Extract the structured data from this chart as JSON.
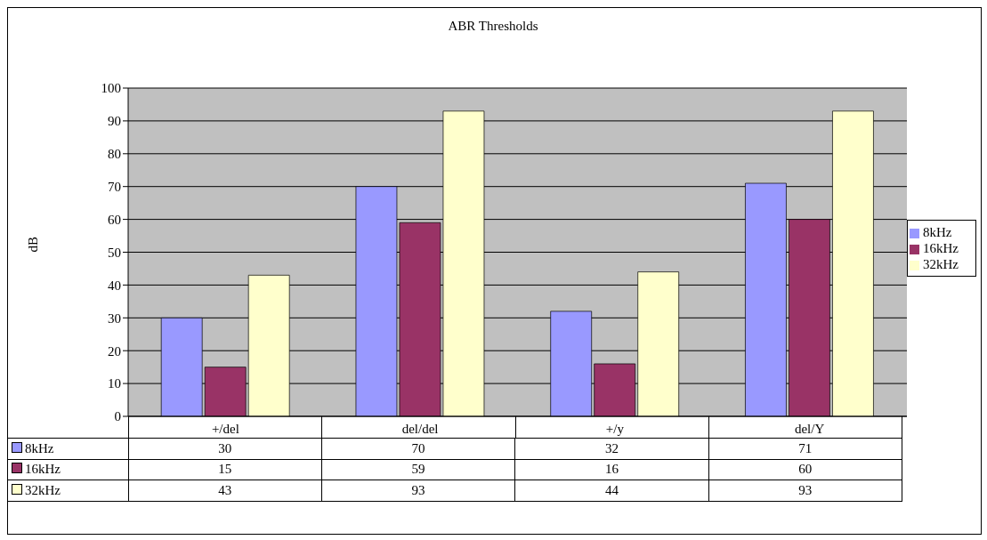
{
  "chart_data": {
    "type": "bar",
    "title": "ABR Thresholds",
    "ylabel": "dB",
    "categories": [
      "+/del",
      "del/del",
      "+/y",
      "del/Y"
    ],
    "series": [
      {
        "name": "8kHz",
        "color": "#9999ff",
        "values": [
          30,
          70,
          32,
          71
        ]
      },
      {
        "name": "16kHz",
        "color": "#993366",
        "values": [
          15,
          59,
          16,
          60
        ]
      },
      {
        "name": "32kHz",
        "color": "#ffffcc",
        "values": [
          43,
          93,
          44,
          93
        ]
      }
    ],
    "ylim": [
      0,
      100
    ],
    "yticks": [
      0,
      10,
      20,
      30,
      40,
      50,
      60,
      70,
      80,
      90,
      100
    ],
    "grid": "y",
    "legend": "right",
    "data_labels": true
  }
}
